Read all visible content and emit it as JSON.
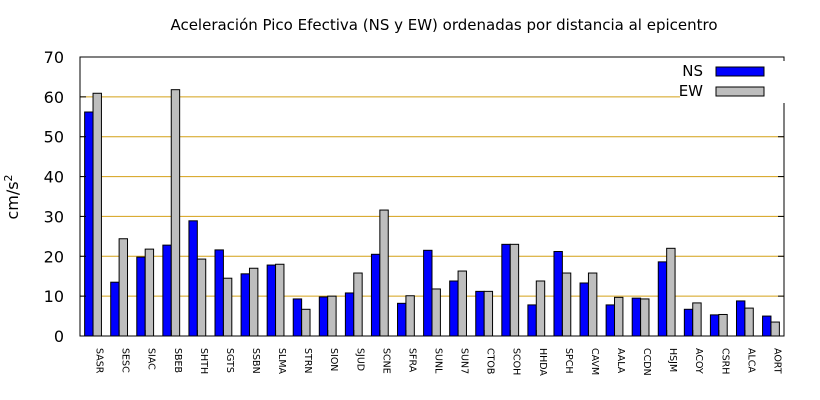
{
  "chart_data": {
    "type": "bar",
    "title": "Aceleración Pico Efectiva (NS y EW) ordenadas por distancia al epicentro",
    "ylabel": "cm/s",
    "ylabel_exponent": "2",
    "xlabel": "",
    "ylim": [
      0,
      70
    ],
    "yticks": [
      "0",
      "10",
      "20",
      "30",
      "40",
      "50",
      "60",
      "70"
    ],
    "grid": true,
    "legend_position": "top-right",
    "categories": [
      "SASR",
      "SESC",
      "SIAC",
      "SBEB",
      "SHTH",
      "SGTS",
      "SSBN",
      "SLMA",
      "STRN",
      "SION",
      "SJUD",
      "SCNE",
      "SFRA",
      "SUNL",
      "SUN7",
      "CTOB",
      "SCOH",
      "HHDA",
      "SPCH",
      "CAVM",
      "AALA",
      "CCDN",
      "HSJM",
      "ACOY",
      "CSRH",
      "ALCA",
      "AORT"
    ],
    "series": [
      {
        "name": "NS",
        "color": "#0000ff",
        "values": [
          56.2,
          13.5,
          19.8,
          22.8,
          28.9,
          21.6,
          15.6,
          17.8,
          9.3,
          9.8,
          10.8,
          20.5,
          8.2,
          21.5,
          13.8,
          11.2,
          23.0,
          7.8,
          21.2,
          13.3,
          7.8,
          9.5,
          18.6,
          6.7,
          5.3,
          8.8,
          5.0
        ]
      },
      {
        "name": "EW",
        "color": "#bebebe",
        "values": [
          60.9,
          24.4,
          21.8,
          61.8,
          19.3,
          14.5,
          17.0,
          18.0,
          6.7,
          10.0,
          15.8,
          31.6,
          10.1,
          11.8,
          16.3,
          11.2,
          23.0,
          13.8,
          15.8,
          15.8,
          9.7,
          9.3,
          22.0,
          8.3,
          5.4,
          7.0,
          3.5
        ]
      }
    ]
  }
}
